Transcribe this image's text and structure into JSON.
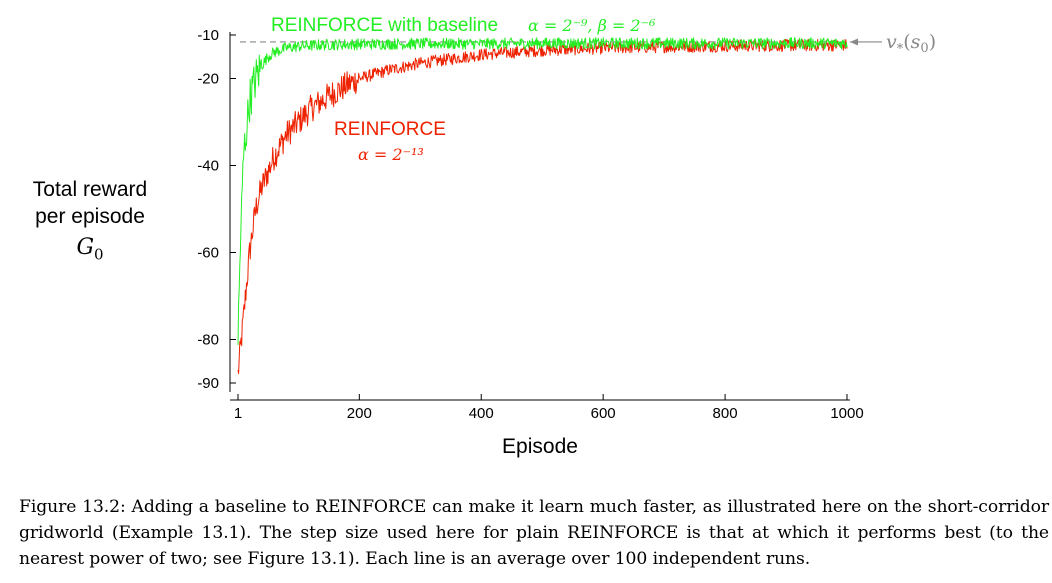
{
  "chart_data": {
    "type": "line",
    "title": "",
    "xlabel": "Episode",
    "ylabel": [
      "Total reward",
      "per episode"
    ],
    "ylabel_symbol": "G",
    "ylabel_symbol_sub": "0",
    "xlim": [
      1,
      1000
    ],
    "ylim": [
      -90,
      -10
    ],
    "x_ticks": [
      1,
      200,
      400,
      600,
      800,
      1000
    ],
    "y_ticks": [
      -10,
      -20,
      -40,
      -60,
      -80,
      -90
    ],
    "grid": false,
    "legend": "inline labels",
    "series": [
      {
        "name": "REINFORCE with baseline",
        "annotation": "α = 2⁻⁹, β = 2⁻⁶",
        "color": "#22ee22",
        "x": [
          1,
          5,
          10,
          20,
          30,
          40,
          50,
          60,
          70,
          80,
          100,
          120,
          150,
          200,
          300,
          400,
          500,
          600,
          700,
          800,
          900,
          1000
        ],
        "y": [
          -80,
          -58,
          -38,
          -25,
          -20,
          -17,
          -15,
          -14,
          -13.5,
          -13,
          -12.6,
          -12.4,
          -12.2,
          -12.1,
          -12,
          -12,
          -11.9,
          -11.9,
          -11.9,
          -11.9,
          -11.9,
          -11.9
        ]
      },
      {
        "name": "REINFORCE",
        "annotation": "α = 2⁻¹³",
        "color": "#ee2200",
        "x": [
          1,
          10,
          20,
          30,
          40,
          60,
          80,
          100,
          120,
          150,
          180,
          200,
          250,
          300,
          350,
          400,
          500,
          600,
          700,
          800,
          900,
          1000
        ],
        "y": [
          -88,
          -75,
          -60,
          -50,
          -45,
          -38,
          -33,
          -30,
          -27,
          -24,
          -21.5,
          -20,
          -18,
          -16.5,
          -15.5,
          -14.5,
          -13.5,
          -13,
          -12.7,
          -12.5,
          -12.4,
          -12.3
        ]
      }
    ],
    "reference_line": {
      "label": "v*(s0)",
      "label_main": "v",
      "label_sub": "*",
      "label_arg": "s",
      "label_arg_sub": "0",
      "y": -11.6,
      "color": "#888888"
    }
  },
  "caption": {
    "prefix": "Figure 13.2:",
    "text": "Adding a baseline to REINFORCE can make it learn much faster, as illustrated here on the short-corridor gridworld (Example 13.1). The step size used here for plain REINFORCE is that at which it performs best (to the nearest power of two; see Figure 13.1). Each line is an average over 100 independent runs."
  }
}
